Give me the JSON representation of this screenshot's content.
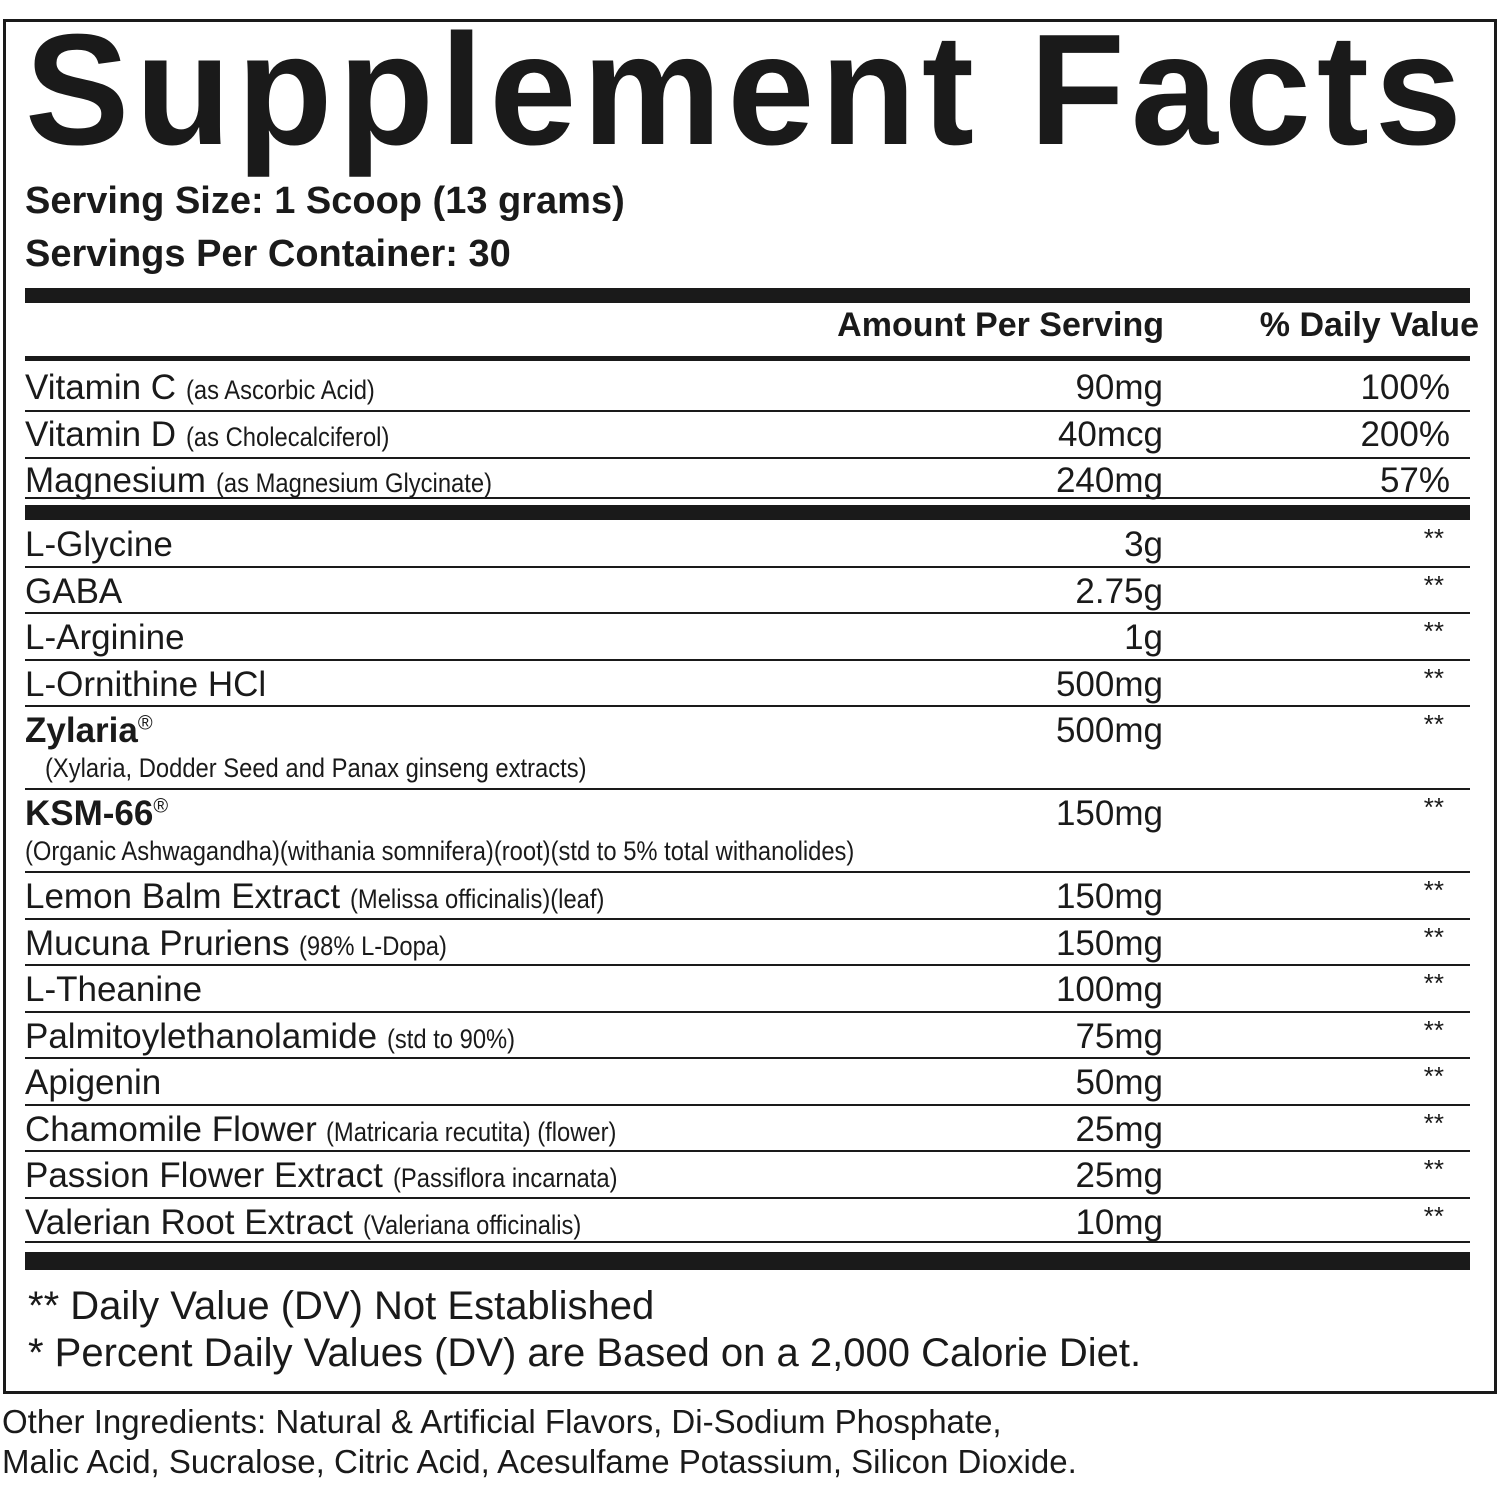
{
  "title": "Supplement Facts",
  "serving_size": "Serving Size: 1 Scoop (13 grams)",
  "servings_per_container": "Servings Per Container: 30",
  "header": {
    "amount": "Amount Per Serving",
    "daily_value": "% Daily Value"
  },
  "vitamins": [
    {
      "name": "Vitamin C",
      "detail": "(as Ascorbic Acid)",
      "amount": "90mg",
      "dv": "100%"
    },
    {
      "name": "Vitamin D",
      "detail": "(as Cholecalciferol)",
      "amount": "40mcg",
      "dv": "200%"
    },
    {
      "name": "Magnesium",
      "detail": "(as Magnesium Glycinate)",
      "amount": "240mg",
      "dv": "57%"
    }
  ],
  "ingredients": [
    {
      "name": "L-Glycine",
      "detail": "",
      "amount": "3g",
      "dv": "**"
    },
    {
      "name": "GABA",
      "detail": "",
      "amount": "2.75g",
      "dv": "**"
    },
    {
      "name": "L-Arginine",
      "detail": "",
      "amount": "1g",
      "dv": "**"
    },
    {
      "name": "L-Ornithine HCl",
      "detail": "",
      "amount": "500mg",
      "dv": "**"
    },
    {
      "name": "Zylaria",
      "mark": "®",
      "bold": true,
      "detail2": "(Xylaria, Dodder Seed and Panax ginseng extracts)",
      "amount": "500mg",
      "dv": "**"
    },
    {
      "name": "KSM-66",
      "mark": "®",
      "bold": true,
      "detail2": "(Organic Ashwagandha)(withania somnifera)(root)(std to 5% total withanolides)",
      "amount": "150mg",
      "dv": "**"
    },
    {
      "name": "Lemon Balm Extract",
      "detail": "(Melissa officinalis)(leaf)",
      "amount": "150mg",
      "dv": "**"
    },
    {
      "name": "Mucuna Pruriens",
      "detail": "(98% L-Dopa)",
      "amount": "150mg",
      "dv": "**"
    },
    {
      "name": "L-Theanine",
      "detail": "",
      "amount": "100mg",
      "dv": "**"
    },
    {
      "name": "Palmitoylethanolamide",
      "detail": "(std to 90%)",
      "amount": "75mg",
      "dv": "**"
    },
    {
      "name": "Apigenin",
      "detail": "",
      "amount": "50mg",
      "dv": "**"
    },
    {
      "name": "Chamomile Flower",
      "detail": "(Matricaria recutita) (flower)",
      "amount": "25mg",
      "dv": "**"
    },
    {
      "name": "Passion Flower Extract",
      "detail": "(Passiflora incarnata)",
      "amount": "25mg",
      "dv": "**"
    },
    {
      "name": "Valerian Root Extract",
      "detail": "(Valeriana officinalis)",
      "amount": "10mg",
      "dv": "**"
    }
  ],
  "footnotes": [
    "** Daily Value (DV) Not Established",
    "* Percent Daily Values (DV) are Based on a 2,000 Calorie Diet."
  ],
  "other_ingredients": [
    "Other Ingredients: Natural & Artificial Flavors, Di-Sodium Phosphate,",
    "Malic Acid, Sucralose, Citric Acid, Acesulfame Potassium, Silicon Dioxide."
  ]
}
